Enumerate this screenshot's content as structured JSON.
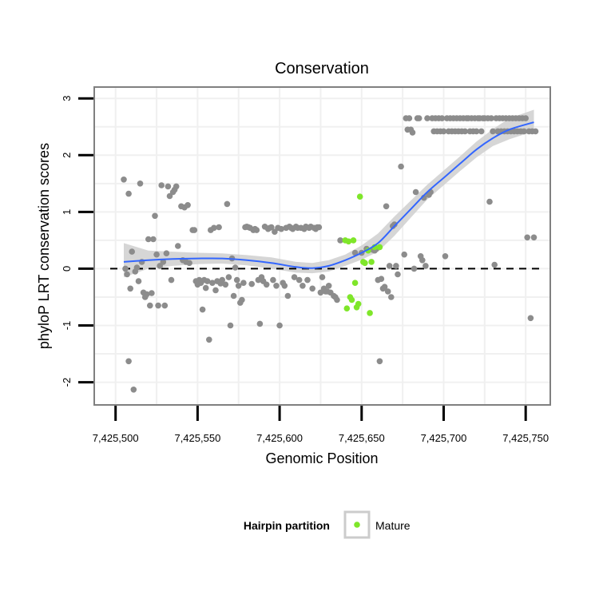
{
  "chart_data": {
    "type": "scatter",
    "title": "Conservation",
    "xlabel": "Genomic Position",
    "ylabel": "phyloP LRT conservation scores",
    "xlim": [
      7425487,
      7425765
    ],
    "ylim": [
      -2.4,
      3.2
    ],
    "x_ticks": [
      7425500,
      7425550,
      7425600,
      7425650,
      7425700,
      7425750
    ],
    "x_tick_labels": [
      "7,425,500",
      "7,425,550",
      "7,425,600",
      "7,425,650",
      "7,425,700",
      "7,425,750"
    ],
    "y_ticks": [
      -2,
      -1,
      0,
      1,
      2,
      3
    ],
    "y_tick_labels": [
      "-2",
      "-1",
      "0",
      "1",
      "2",
      "3"
    ],
    "grid": true,
    "reference_line": {
      "y": 0,
      "style": "dashed",
      "color": "#000000"
    },
    "legend": {
      "title": "Hairpin partition",
      "entries": [
        {
          "label": "Mature",
          "color": "#7fe62a"
        }
      ],
      "position": "bottom"
    },
    "colors": {
      "other": "#8c8c8c",
      "mature": "#7fe62a",
      "smooth": "#3366ff",
      "band": "#cfcfcf",
      "grid": "#f0f0f0",
      "panel_border": "#808080"
    },
    "series": [
      {
        "name": "Other",
        "points": [
          [
            7425505,
            1.57
          ],
          [
            7425506,
            0.0
          ],
          [
            7425507,
            -0.1
          ],
          [
            7425508,
            1.32
          ],
          [
            7425508,
            -1.63
          ],
          [
            7425509,
            -0.35
          ],
          [
            7425510,
            0.3
          ],
          [
            7425511,
            -2.13
          ],
          [
            7425512,
            -0.05
          ],
          [
            7425513,
            0.02
          ],
          [
            7425514,
            -0.22
          ],
          [
            7425515,
            1.5
          ],
          [
            7425516,
            0.12
          ],
          [
            7425517,
            -0.42
          ],
          [
            7425518,
            -0.5
          ],
          [
            7425519,
            -0.45
          ],
          [
            7425520,
            0.52
          ],
          [
            7425521,
            -0.65
          ],
          [
            7425522,
            -0.43
          ],
          [
            7425523,
            0.52
          ],
          [
            7425524,
            0.93
          ],
          [
            7425525,
            0.25
          ],
          [
            7425526,
            -0.65
          ],
          [
            7425527,
            0.05
          ],
          [
            7425528,
            1.47
          ],
          [
            7425529,
            0.12
          ],
          [
            7425530,
            -0.65
          ],
          [
            7425531,
            0.27
          ],
          [
            7425532,
            1.45
          ],
          [
            7425533,
            1.28
          ],
          [
            7425534,
            -0.2
          ],
          [
            7425535,
            1.35
          ],
          [
            7425536,
            1.39
          ],
          [
            7425537,
            1.45
          ],
          [
            7425538,
            0.4
          ],
          [
            7425540,
            1.1
          ],
          [
            7425541,
            0.15
          ],
          [
            7425542,
            1.08
          ],
          [
            7425543,
            0.12
          ],
          [
            7425544,
            1.12
          ],
          [
            7425545,
            0.1
          ],
          [
            7425547,
            0.68
          ],
          [
            7425548,
            0.68
          ],
          [
            7425549,
            -0.22
          ],
          [
            7425550,
            -0.28
          ],
          [
            7425551,
            -0.2
          ],
          [
            7425552,
            -0.25
          ],
          [
            7425553,
            -0.72
          ],
          [
            7425554,
            -0.2
          ],
          [
            7425555,
            -0.34
          ],
          [
            7425556,
            -0.22
          ],
          [
            7425557,
            -1.25
          ],
          [
            7425558,
            0.68
          ],
          [
            7425559,
            -0.25
          ],
          [
            7425560,
            0.72
          ],
          [
            7425561,
            -0.38
          ],
          [
            7425562,
            -0.22
          ],
          [
            7425563,
            0.73
          ],
          [
            7425564,
            -0.26
          ],
          [
            7425565,
            -0.2
          ],
          [
            7425567,
            -0.28
          ],
          [
            7425568,
            1.14
          ],
          [
            7425569,
            -0.15
          ],
          [
            7425570,
            -1.0
          ],
          [
            7425571,
            0.18
          ],
          [
            7425572,
            -0.48
          ],
          [
            7425573,
            0.02
          ],
          [
            7425574,
            -0.2
          ],
          [
            7425575,
            -0.3
          ],
          [
            7425576,
            -0.6
          ],
          [
            7425577,
            -0.55
          ],
          [
            7425578,
            -0.25
          ],
          [
            7425579,
            0.73
          ],
          [
            7425580,
            0.74
          ],
          [
            7425581,
            0.73
          ],
          [
            7425582,
            0.72
          ],
          [
            7425583,
            -0.27
          ],
          [
            7425584,
            0.68
          ],
          [
            7425585,
            0.7
          ],
          [
            7425586,
            0.68
          ],
          [
            7425587,
            -0.2
          ],
          [
            7425588,
            -0.97
          ],
          [
            7425589,
            -0.15
          ],
          [
            7425590,
            -0.22
          ],
          [
            7425591,
            0.74
          ],
          [
            7425592,
            -0.28
          ],
          [
            7425593,
            0.7
          ],
          [
            7425594,
            0.72
          ],
          [
            7425595,
            0.73
          ],
          [
            7425596,
            -0.2
          ],
          [
            7425597,
            0.65
          ],
          [
            7425598,
            -0.3
          ],
          [
            7425599,
            0.72
          ],
          [
            7425600,
            -1.0
          ],
          [
            7425601,
            0.7
          ],
          [
            7425602,
            -0.25
          ],
          [
            7425603,
            -0.3
          ],
          [
            7425604,
            0.72
          ],
          [
            7425605,
            -0.48
          ],
          [
            7425606,
            0.74
          ],
          [
            7425607,
            0.72
          ],
          [
            7425608,
            0.7
          ],
          [
            7425609,
            -0.15
          ],
          [
            7425610,
            0.74
          ],
          [
            7425611,
            0.72
          ],
          [
            7425612,
            -0.2
          ],
          [
            7425613,
            0.72
          ],
          [
            7425614,
            -0.3
          ],
          [
            7425615,
            0.7
          ],
          [
            7425616,
            0.74
          ],
          [
            7425617,
            -0.2
          ],
          [
            7425618,
            0.72
          ],
          [
            7425619,
            0.74
          ],
          [
            7425620,
            -0.35
          ],
          [
            7425621,
            0.72
          ],
          [
            7425622,
            0.7
          ],
          [
            7425623,
            0.73
          ],
          [
            7425624,
            0.73
          ],
          [
            7425625,
            -0.42
          ],
          [
            7425626,
            -0.15
          ],
          [
            7425627,
            -0.35
          ],
          [
            7425628,
            -0.4
          ],
          [
            7425629,
            -0.4
          ],
          [
            7425630,
            -0.3
          ],
          [
            7425631,
            -0.42
          ],
          [
            7425633,
            -0.48
          ],
          [
            7425634,
            -0.5
          ],
          [
            7425635,
            -0.55
          ],
          [
            7425637,
            0.5
          ],
          [
            7425646,
            0.28
          ],
          [
            7425650,
            0.28
          ],
          [
            7425653,
            0.35
          ],
          [
            7425657,
            0.33
          ],
          [
            7425658,
            0.32
          ],
          [
            7425659,
            0.35
          ],
          [
            7425660,
            -0.2
          ],
          [
            7425661,
            -1.63
          ],
          [
            7425662,
            -0.18
          ],
          [
            7425663,
            -0.35
          ],
          [
            7425664,
            -0.32
          ],
          [
            7425665,
            1.1
          ],
          [
            7425666,
            -0.4
          ],
          [
            7425667,
            0.05
          ],
          [
            7425668,
            -0.5
          ],
          [
            7425669,
            0.75
          ],
          [
            7425670,
            0.78
          ],
          [
            7425671,
            0.05
          ],
          [
            7425672,
            -0.1
          ],
          [
            7425674,
            1.8
          ],
          [
            7425676,
            0.25
          ],
          [
            7425677,
            2.65
          ],
          [
            7425678,
            2.45
          ],
          [
            7425679,
            2.65
          ],
          [
            7425680,
            2.45
          ],
          [
            7425681,
            2.4
          ],
          [
            7425682,
            0.0
          ],
          [
            7425683,
            1.35
          ],
          [
            7425684,
            2.65
          ],
          [
            7425685,
            2.65
          ],
          [
            7425686,
            0.22
          ],
          [
            7425687,
            0.15
          ],
          [
            7425688,
            1.25
          ],
          [
            7425689,
            0.05
          ],
          [
            7425690,
            2.65
          ],
          [
            7425691,
            1.3
          ],
          [
            7425692,
            1.35
          ],
          [
            7425693,
            2.65
          ],
          [
            7425694,
            2.42
          ],
          [
            7425695,
            2.65
          ],
          [
            7425696,
            2.42
          ],
          [
            7425697,
            2.65
          ],
          [
            7425698,
            2.42
          ],
          [
            7425699,
            2.65
          ],
          [
            7425700,
            2.42
          ],
          [
            7425701,
            0.22
          ],
          [
            7425702,
            2.65
          ],
          [
            7425703,
            2.42
          ],
          [
            7425704,
            2.65
          ],
          [
            7425705,
            2.42
          ],
          [
            7425706,
            2.65
          ],
          [
            7425707,
            2.42
          ],
          [
            7425708,
            2.65
          ],
          [
            7425709,
            2.42
          ],
          [
            7425710,
            2.65
          ],
          [
            7425711,
            2.42
          ],
          [
            7425712,
            2.65
          ],
          [
            7425713,
            2.42
          ],
          [
            7425714,
            2.65
          ],
          [
            7425715,
            2.65
          ],
          [
            7425716,
            2.42
          ],
          [
            7425717,
            2.65
          ],
          [
            7425718,
            2.42
          ],
          [
            7425719,
            2.65
          ],
          [
            7425720,
            2.42
          ],
          [
            7425721,
            2.65
          ],
          [
            7425722,
            2.65
          ],
          [
            7425723,
            2.42
          ],
          [
            7425724,
            2.65
          ],
          [
            7425725,
            2.65
          ],
          [
            7425727,
            2.65
          ],
          [
            7425728,
            1.18
          ],
          [
            7425729,
            2.65
          ],
          [
            7425730,
            2.42
          ],
          [
            7425731,
            0.07
          ],
          [
            7425732,
            2.65
          ],
          [
            7425733,
            2.42
          ],
          [
            7425734,
            2.65
          ],
          [
            7425735,
            2.42
          ],
          [
            7425736,
            2.65
          ],
          [
            7425737,
            2.42
          ],
          [
            7425738,
            2.65
          ],
          [
            7425739,
            2.42
          ],
          [
            7425740,
            2.65
          ],
          [
            7425741,
            2.42
          ],
          [
            7425742,
            2.65
          ],
          [
            7425743,
            2.42
          ],
          [
            7425744,
            2.65
          ],
          [
            7425745,
            2.42
          ],
          [
            7425746,
            2.65
          ],
          [
            7425747,
            2.42
          ],
          [
            7425748,
            2.65
          ],
          [
            7425749,
            2.42
          ],
          [
            7425750,
            2.65
          ],
          [
            7425751,
            0.55
          ],
          [
            7425752,
            2.42
          ],
          [
            7425753,
            -0.87
          ],
          [
            7425754,
            2.42
          ],
          [
            7425755,
            0.55
          ],
          [
            7425756,
            2.42
          ]
        ]
      },
      {
        "name": "Mature",
        "points": [
          [
            7425640,
            0.5
          ],
          [
            7425641,
            -0.7
          ],
          [
            7425642,
            0.48
          ],
          [
            7425643,
            -0.5
          ],
          [
            7425644,
            -0.55
          ],
          [
            7425645,
            0.5
          ],
          [
            7425646,
            -0.25
          ],
          [
            7425647,
            -0.68
          ],
          [
            7425648,
            -0.62
          ],
          [
            7425649,
            1.27
          ],
          [
            7425651,
            0.12
          ],
          [
            7425652,
            0.1
          ],
          [
            7425654,
            0.32
          ],
          [
            7425655,
            -0.78
          ],
          [
            7425656,
            0.12
          ],
          [
            7425658,
            0.38
          ],
          [
            7425661,
            0.38
          ]
        ]
      }
    ],
    "smooth": {
      "method": "loess",
      "x": [
        7425505,
        7425520,
        7425535,
        7425550,
        7425565,
        7425580,
        7425595,
        7425610,
        7425620,
        7425630,
        7425640,
        7425650,
        7425660,
        7425670,
        7425680,
        7425690,
        7425700,
        7425710,
        7425720,
        7425730,
        7425740,
        7425755
      ],
      "y": [
        0.12,
        0.15,
        0.17,
        0.18,
        0.18,
        0.15,
        0.1,
        0.03,
        0.01,
        0.05,
        0.15,
        0.28,
        0.45,
        0.75,
        1.05,
        1.35,
        1.6,
        1.85,
        2.1,
        2.3,
        2.45,
        2.58
      ],
      "ci_low": [
        -0.15,
        0.0,
        0.05,
        0.08,
        0.09,
        0.06,
        0.0,
        -0.07,
        -0.08,
        -0.05,
        0.05,
        0.16,
        0.3,
        0.58,
        0.9,
        1.22,
        1.47,
        1.72,
        1.96,
        2.16,
        2.28,
        2.42
      ],
      "ci_high": [
        0.45,
        0.32,
        0.3,
        0.28,
        0.27,
        0.24,
        0.2,
        0.12,
        0.1,
        0.15,
        0.25,
        0.41,
        0.62,
        0.92,
        1.2,
        1.48,
        1.73,
        1.98,
        2.24,
        2.46,
        2.65,
        2.8
      ]
    }
  }
}
